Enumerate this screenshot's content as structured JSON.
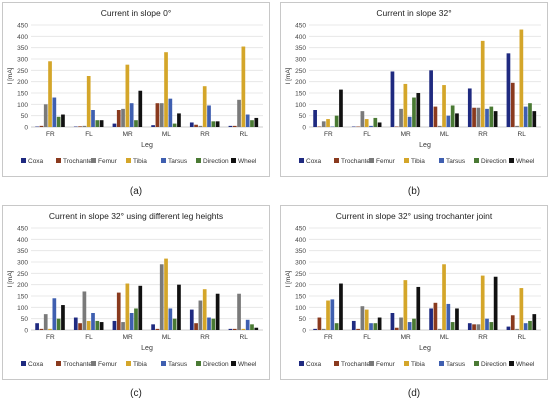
{
  "series_meta": [
    {
      "name": "Coxa",
      "color": "#1f2a80"
    },
    {
      "name": "Trochanter",
      "color": "#8a3a1e"
    },
    {
      "name": "Femur",
      "color": "#7a7a7a"
    },
    {
      "name": "Tibia",
      "color": "#d4a62a"
    },
    {
      "name": "Tarsus",
      "color": "#3f5fb0"
    },
    {
      "name": "Direction",
      "color": "#4a7a34"
    },
    {
      "name": "Wheel",
      "color": "#111111"
    }
  ],
  "chart_data": [
    {
      "type": "bar",
      "panel_label": "(a)",
      "title": "Current in slope 0°",
      "xlabel": "Leg",
      "ylabel": "I [mA]",
      "ylim": [
        0,
        450
      ],
      "yticks": [
        0,
        50,
        100,
        150,
        200,
        250,
        300,
        350,
        400,
        450
      ],
      "categories": [
        "FR",
        "FL",
        "MR",
        "ML",
        "RR",
        "RL"
      ],
      "grid": true,
      "legend": "bottom",
      "series": [
        {
          "name": "Coxa",
          "values": [
            2,
            2,
            15,
            8,
            20,
            5
          ]
        },
        {
          "name": "Trochanter",
          "values": [
            5,
            3,
            75,
            105,
            10,
            5
          ]
        },
        {
          "name": "Femur",
          "values": [
            100,
            5,
            80,
            105,
            5,
            120
          ]
        },
        {
          "name": "Tibia",
          "values": [
            290,
            225,
            275,
            330,
            180,
            355
          ]
        },
        {
          "name": "Tarsus",
          "values": [
            130,
            75,
            105,
            125,
            95,
            55
          ]
        },
        {
          "name": "Direction",
          "values": [
            45,
            30,
            30,
            15,
            25,
            30
          ]
        },
        {
          "name": "Wheel",
          "values": [
            55,
            30,
            160,
            60,
            25,
            40
          ]
        }
      ]
    },
    {
      "type": "bar",
      "panel_label": "(b)",
      "title": "Current in slope 32°",
      "xlabel": "Leg",
      "ylabel": "I [mA]",
      "ylim": [
        0,
        450
      ],
      "yticks": [
        0,
        50,
        100,
        150,
        200,
        250,
        300,
        350,
        400,
        450
      ],
      "categories": [
        "FR",
        "FL",
        "MR",
        "ML",
        "RR",
        "RL"
      ],
      "grid": true,
      "legend": "bottom",
      "series": [
        {
          "name": "Coxa",
          "values": [
            75,
            2,
            245,
            250,
            170,
            325
          ]
        },
        {
          "name": "Trochanter",
          "values": [
            2,
            2,
            2,
            90,
            85,
            195
          ]
        },
        {
          "name": "Femur",
          "values": [
            25,
            70,
            80,
            5,
            85,
            5
          ]
        },
        {
          "name": "Tibia",
          "values": [
            35,
            35,
            190,
            185,
            380,
            430
          ]
        },
        {
          "name": "Tarsus",
          "values": [
            2,
            5,
            45,
            50,
            80,
            90
          ]
        },
        {
          "name": "Direction",
          "values": [
            50,
            40,
            130,
            95,
            90,
            105
          ]
        },
        {
          "name": "Wheel",
          "values": [
            165,
            20,
            150,
            60,
            70,
            70
          ]
        }
      ]
    },
    {
      "type": "bar",
      "panel_label": "(c)",
      "title": "Current in slope 32° using different leg heights",
      "xlabel": "Leg",
      "ylabel": "I [mA]",
      "ylim": [
        0,
        450
      ],
      "yticks": [
        0,
        50,
        100,
        150,
        200,
        250,
        300,
        350,
        400,
        450
      ],
      "categories": [
        "FR",
        "FL",
        "MR",
        "ML",
        "RR",
        "RL"
      ],
      "grid": true,
      "legend": "bottom",
      "series": [
        {
          "name": "Coxa",
          "values": [
            30,
            55,
            40,
            25,
            90,
            5
          ]
        },
        {
          "name": "Trochanter",
          "values": [
            5,
            30,
            165,
            5,
            30,
            5
          ]
        },
        {
          "name": "Femur",
          "values": [
            70,
            170,
            35,
            290,
            130,
            160
          ]
        },
        {
          "name": "Tibia",
          "values": [
            5,
            40,
            205,
            315,
            180,
            5
          ]
        },
        {
          "name": "Tarsus",
          "values": [
            140,
            75,
            75,
            95,
            55,
            45
          ]
        },
        {
          "name": "Direction",
          "values": [
            50,
            40,
            95,
            50,
            50,
            25
          ]
        },
        {
          "name": "Wheel",
          "values": [
            110,
            35,
            195,
            200,
            160,
            10
          ]
        }
      ]
    },
    {
      "type": "bar",
      "panel_label": "(d)",
      "title": "Current in slope 32° using trochanter joint",
      "xlabel": "Leg",
      "ylabel": "I [mA]",
      "ylim": [
        0,
        450
      ],
      "yticks": [
        0,
        50,
        100,
        150,
        200,
        250,
        300,
        350,
        400,
        450
      ],
      "categories": [
        "FR",
        "FL",
        "MR",
        "ML",
        "RR",
        "RL"
      ],
      "grid": true,
      "legend": "bottom",
      "series": [
        {
          "name": "Coxa",
          "values": [
            5,
            40,
            75,
            95,
            30,
            15
          ]
        },
        {
          "name": "Trochanter",
          "values": [
            55,
            5,
            10,
            120,
            25,
            65
          ]
        },
        {
          "name": "Femur",
          "values": [
            5,
            105,
            55,
            5,
            25,
            5
          ]
        },
        {
          "name": "Tibia",
          "values": [
            130,
            90,
            220,
            290,
            240,
            185
          ]
        },
        {
          "name": "Tarsus",
          "values": [
            135,
            30,
            35,
            115,
            50,
            30
          ]
        },
        {
          "name": "Direction",
          "values": [
            30,
            30,
            50,
            35,
            35,
            40
          ]
        },
        {
          "name": "Wheel",
          "values": [
            205,
            55,
            190,
            95,
            235,
            70
          ]
        }
      ]
    }
  ]
}
